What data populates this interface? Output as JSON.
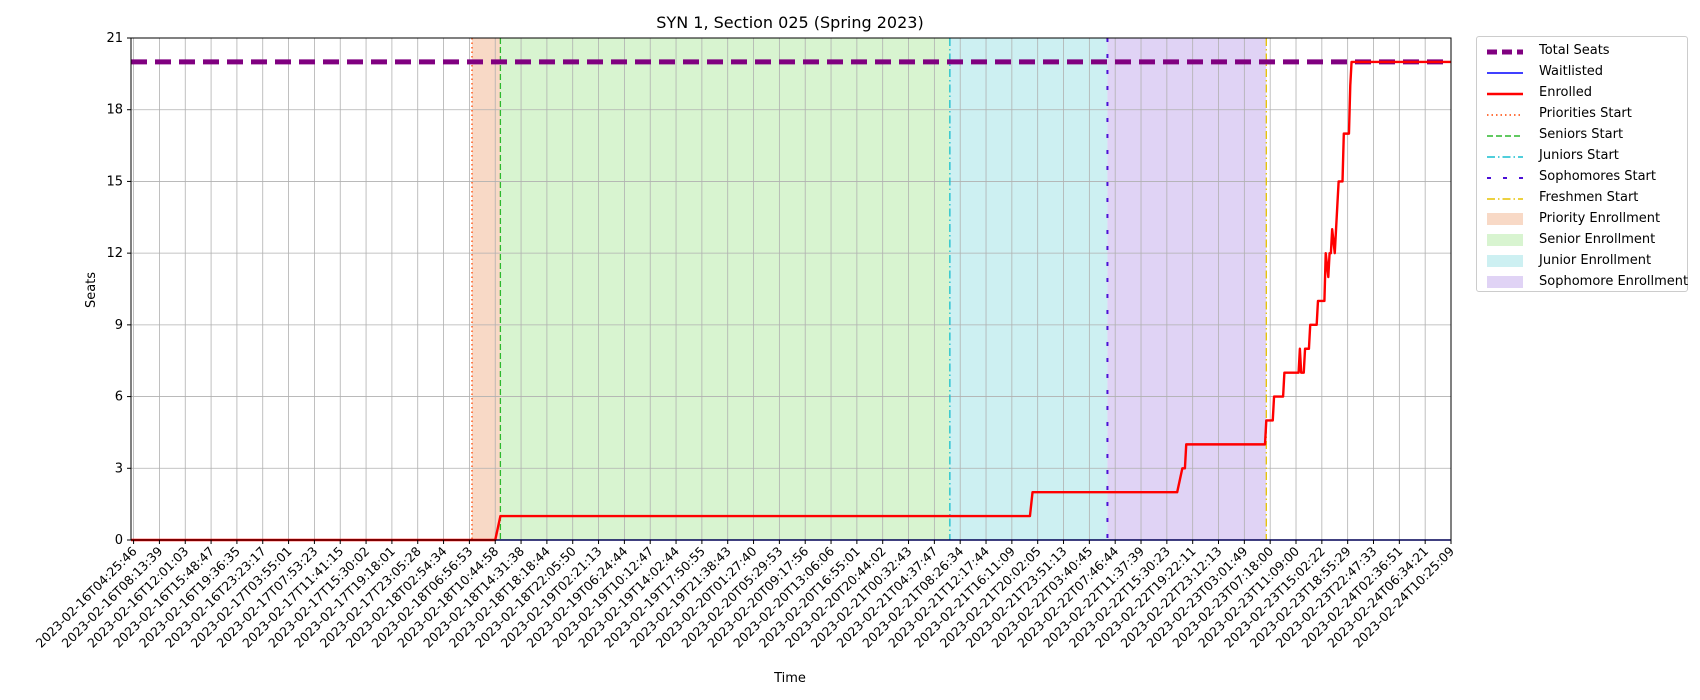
{
  "chart_data": {
    "type": "line",
    "title": "SYN 1, Section 025 (Spring 2023)",
    "xlabel": "Time",
    "ylabel": "Seats",
    "ylim": [
      0,
      21
    ],
    "yticks": [
      0,
      3,
      6,
      9,
      12,
      15,
      18,
      21
    ],
    "grid": true,
    "legend_position": "outside-right",
    "x_ticks": [
      "2023-02-16T04:25:46",
      "2023-02-16T08:13:39",
      "2023-02-16T12:01:03",
      "2023-02-16T15:48:47",
      "2023-02-16T19:36:35",
      "2023-02-16T23:23:17",
      "2023-02-17T03:55:01",
      "2023-02-17T07:53:23",
      "2023-02-17T11:41:15",
      "2023-02-17T15:30:02",
      "2023-02-17T19:18:01",
      "2023-02-17T23:05:28",
      "2023-02-18T02:54:34",
      "2023-02-18T06:56:53",
      "2023-02-18T10:44:58",
      "2023-02-18T14:31:38",
      "2023-02-18T18:18:44",
      "2023-02-18T22:05:50",
      "2023-02-19T02:21:13",
      "2023-02-19T06:24:44",
      "2023-02-19T10:12:47",
      "2023-02-19T14:02:44",
      "2023-02-19T17:50:55",
      "2023-02-19T21:38:43",
      "2023-02-20T01:27:40",
      "2023-02-20T05:29:53",
      "2023-02-20T09:17:56",
      "2023-02-20T13:06:06",
      "2023-02-20T16:55:01",
      "2023-02-20T20:44:02",
      "2023-02-21T00:32:43",
      "2023-02-21T04:37:47",
      "2023-02-21T08:26:34",
      "2023-02-21T12:17:44",
      "2023-02-21T16:11:09",
      "2023-02-21T20:02:05",
      "2023-02-21T23:51:13",
      "2023-02-22T03:40:45",
      "2023-02-22T07:46:44",
      "2023-02-22T11:37:39",
      "2023-02-22T15:30:23",
      "2023-02-22T19:22:11",
      "2023-02-22T23:12:13",
      "2023-02-23T03:01:49",
      "2023-02-23T07:18:00",
      "2023-02-23T11:09:00",
      "2023-02-23T15:02:22",
      "2023-02-23T18:55:29",
      "2023-02-23T22:47:33",
      "2023-02-24T02:36:51",
      "2023-02-24T06:34:21",
      "2023-02-24T10:25:09"
    ],
    "x_range_index": [
      -0.1,
      51.0
    ],
    "series": [
      {
        "name": "Total Seats",
        "color": "#800080",
        "style": "dashed-thick",
        "points": [
          [
            -0.1,
            20
          ],
          [
            51.0,
            20
          ]
        ]
      },
      {
        "name": "Waitlisted",
        "color": "#0000ff",
        "style": "solid",
        "points": [
          [
            -0.1,
            0
          ],
          [
            51.0,
            0
          ]
        ]
      },
      {
        "name": "Enrolled",
        "color": "#ff0000",
        "style": "solid",
        "points": [
          [
            -0.1,
            0
          ],
          [
            14.0,
            0
          ],
          [
            14.2,
            1
          ],
          [
            34.7,
            1
          ],
          [
            34.8,
            2
          ],
          [
            40.4,
            2
          ],
          [
            40.6,
            3
          ],
          [
            40.7,
            3
          ],
          [
            40.75,
            4
          ],
          [
            43.8,
            4
          ],
          [
            43.85,
            5
          ],
          [
            44.1,
            5
          ],
          [
            44.15,
            6
          ],
          [
            44.5,
            6
          ],
          [
            44.55,
            7
          ],
          [
            45.1,
            7
          ],
          [
            45.15,
            8
          ],
          [
            45.2,
            7
          ],
          [
            45.3,
            7
          ],
          [
            45.35,
            8
          ],
          [
            45.5,
            8
          ],
          [
            45.55,
            9
          ],
          [
            45.8,
            9
          ],
          [
            45.85,
            10
          ],
          [
            46.1,
            10
          ],
          [
            46.15,
            12
          ],
          [
            46.25,
            11
          ],
          [
            46.3,
            12
          ],
          [
            46.35,
            12
          ],
          [
            46.4,
            13
          ],
          [
            46.5,
            12
          ],
          [
            46.55,
            13
          ],
          [
            46.6,
            14
          ],
          [
            46.65,
            15
          ],
          [
            46.8,
            15
          ],
          [
            46.85,
            17
          ],
          [
            47.05,
            17
          ],
          [
            47.1,
            19
          ],
          [
            47.15,
            20
          ],
          [
            51.0,
            20
          ]
        ]
      }
    ],
    "events": [
      {
        "name": "Priorities Start",
        "color": "#ff4500",
        "style": "dotted",
        "x": 13.1
      },
      {
        "name": "Seniors Start",
        "color": "#2eb82e",
        "style": "dashed",
        "x": 14.2
      },
      {
        "name": "Juniors Start",
        "color": "#17becf",
        "style": "dashdot",
        "x": 31.6
      },
      {
        "name": "Sophomores Start",
        "color": "#4b0fd6",
        "style": "loosedash",
        "x": 37.7
      },
      {
        "name": "Freshmen Start",
        "color": "#e6c200",
        "style": "dashdot",
        "x": 43.85
      }
    ],
    "regions": [
      {
        "name": "Priority Enrollment",
        "color": "#f8d9c6",
        "from": 13.1,
        "to": 14.2
      },
      {
        "name": "Senior Enrollment",
        "color": "#d8f4d0",
        "from": 14.2,
        "to": 31.6
      },
      {
        "name": "Junior Enrollment",
        "color": "#cdf0f2",
        "from": 31.6,
        "to": 37.7
      },
      {
        "name": "Sophomore Enrollment",
        "color": "#e0d3f5",
        "from": 37.7,
        "to": 43.85
      }
    ]
  },
  "legend": [
    {
      "label": "Total Seats",
      "kind": "line",
      "color": "#800080",
      "style": "thickdash"
    },
    {
      "label": "Waitlisted",
      "kind": "line",
      "color": "#0000ff",
      "style": "solid"
    },
    {
      "label": "Enrolled",
      "kind": "line",
      "color": "#ff0000",
      "style": "solid-thick"
    },
    {
      "label": "Priorities Start",
      "kind": "line",
      "color": "#ff4500",
      "style": "dotted"
    },
    {
      "label": "Seniors Start",
      "kind": "line",
      "color": "#2eb82e",
      "style": "dashed"
    },
    {
      "label": "Juniors Start",
      "kind": "line",
      "color": "#17becf",
      "style": "dashdot"
    },
    {
      "label": "Sophomores Start",
      "kind": "line",
      "color": "#4b0fd6",
      "style": "loosedash"
    },
    {
      "label": "Freshmen Start",
      "kind": "line",
      "color": "#e6c200",
      "style": "dashdot"
    },
    {
      "label": "Priority Enrollment",
      "kind": "patch",
      "color": "#f8d9c6"
    },
    {
      "label": "Senior Enrollment",
      "kind": "patch",
      "color": "#d8f4d0"
    },
    {
      "label": "Junior Enrollment",
      "kind": "patch",
      "color": "#cdf0f2"
    },
    {
      "label": "Sophomore Enrollment",
      "kind": "patch",
      "color": "#e0d3f5"
    }
  ]
}
